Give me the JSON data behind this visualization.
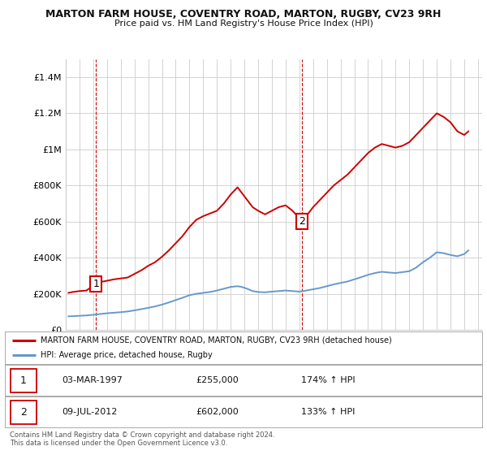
{
  "title": "MARTON FARM HOUSE, COVENTRY ROAD, MARTON, RUGBY, CV23 9RH",
  "subtitle": "Price paid vs. HM Land Registry's House Price Index (HPI)",
  "legend_line1": "MARTON FARM HOUSE, COVENTRY ROAD, MARTON, RUGBY, CV23 9RH (detached house)",
  "legend_line2": "HPI: Average price, detached house, Rugby",
  "annotation1_label": "1",
  "annotation1_date": "03-MAR-1997",
  "annotation1_price": "£255,000",
  "annotation1_pct": "174% ↑ HPI",
  "annotation2_label": "2",
  "annotation2_date": "09-JUL-2012",
  "annotation2_price": "£602,000",
  "annotation2_pct": "133% ↑ HPI",
  "footer": "Contains HM Land Registry data © Crown copyright and database right 2024.\nThis data is licensed under the Open Government Licence v3.0.",
  "red_color": "#cc0000",
  "blue_color": "#6699cc",
  "background_color": "#ffffff",
  "grid_color": "#cccccc",
  "ylim": [
    0,
    1500000
  ],
  "yticks": [
    0,
    200000,
    400000,
    600000,
    800000,
    1000000,
    1200000,
    1400000
  ],
  "ytick_labels": [
    "£0",
    "£200K",
    "£400K",
    "£600K",
    "£800K",
    "£1M",
    "£1.2M",
    "£1.4M"
  ],
  "red_x": [
    1995.2,
    1995.5,
    1996.0,
    1996.5,
    1997.2,
    1997.5,
    1998.0,
    1998.5,
    1999.0,
    1999.5,
    2000.0,
    2000.5,
    2001.0,
    2001.5,
    2002.0,
    2002.5,
    2003.0,
    2003.5,
    2004.0,
    2004.5,
    2005.0,
    2005.5,
    2006.0,
    2006.5,
    2007.0,
    2007.5,
    2007.8,
    2008.2,
    2008.6,
    2009.0,
    2009.5,
    2010.0,
    2010.5,
    2011.0,
    2011.5,
    2012.2,
    2012.6,
    2013.0,
    2013.5,
    2014.0,
    2014.5,
    2015.0,
    2015.5,
    2016.0,
    2016.5,
    2017.0,
    2017.5,
    2018.0,
    2018.5,
    2019.0,
    2019.5,
    2020.0,
    2020.5,
    2021.0,
    2021.5,
    2022.0,
    2022.5,
    2023.0,
    2023.5,
    2024.0,
    2024.3
  ],
  "red_y": [
    205000,
    210000,
    215000,
    218000,
    255000,
    265000,
    272000,
    280000,
    285000,
    290000,
    310000,
    330000,
    355000,
    375000,
    405000,
    440000,
    480000,
    520000,
    570000,
    610000,
    630000,
    645000,
    660000,
    700000,
    750000,
    790000,
    760000,
    720000,
    680000,
    660000,
    640000,
    660000,
    680000,
    690000,
    660000,
    602000,
    640000,
    680000,
    720000,
    760000,
    800000,
    830000,
    860000,
    900000,
    940000,
    980000,
    1010000,
    1030000,
    1020000,
    1010000,
    1020000,
    1040000,
    1080000,
    1120000,
    1160000,
    1200000,
    1180000,
    1150000,
    1100000,
    1080000,
    1100000
  ],
  "blue_x": [
    1995.2,
    1995.5,
    1996.0,
    1996.5,
    1997.2,
    1997.5,
    1998.0,
    1998.5,
    1999.0,
    1999.5,
    2000.0,
    2000.5,
    2001.0,
    2001.5,
    2002.0,
    2002.5,
    2003.0,
    2003.5,
    2004.0,
    2004.5,
    2005.0,
    2005.5,
    2006.0,
    2006.5,
    2007.0,
    2007.5,
    2007.8,
    2008.2,
    2008.6,
    2009.0,
    2009.5,
    2010.0,
    2010.5,
    2011.0,
    2011.5,
    2012.0,
    2012.5,
    2013.0,
    2013.5,
    2014.0,
    2014.5,
    2015.0,
    2015.5,
    2016.0,
    2016.5,
    2017.0,
    2017.5,
    2018.0,
    2018.5,
    2019.0,
    2019.5,
    2020.0,
    2020.5,
    2021.0,
    2021.5,
    2022.0,
    2022.5,
    2023.0,
    2023.5,
    2024.0,
    2024.3
  ],
  "blue_y": [
    75000,
    76000,
    78000,
    80000,
    85000,
    88000,
    92000,
    95000,
    98000,
    102000,
    108000,
    115000,
    122000,
    130000,
    140000,
    152000,
    165000,
    178000,
    192000,
    200000,
    205000,
    210000,
    218000,
    228000,
    238000,
    242000,
    238000,
    228000,
    215000,
    210000,
    208000,
    212000,
    215000,
    218000,
    215000,
    212000,
    218000,
    225000,
    232000,
    242000,
    252000,
    260000,
    268000,
    280000,
    292000,
    305000,
    315000,
    322000,
    318000,
    315000,
    320000,
    325000,
    345000,
    375000,
    400000,
    430000,
    425000,
    415000,
    408000,
    420000,
    440000
  ],
  "ann1_x": 1997.2,
  "ann1_y": 255000,
  "ann2_x": 2012.2,
  "ann2_y": 602000,
  "vline1_x": 1997.2,
  "vline2_x": 2012.2,
  "xmin": 1995.0,
  "xmax": 2025.3
}
